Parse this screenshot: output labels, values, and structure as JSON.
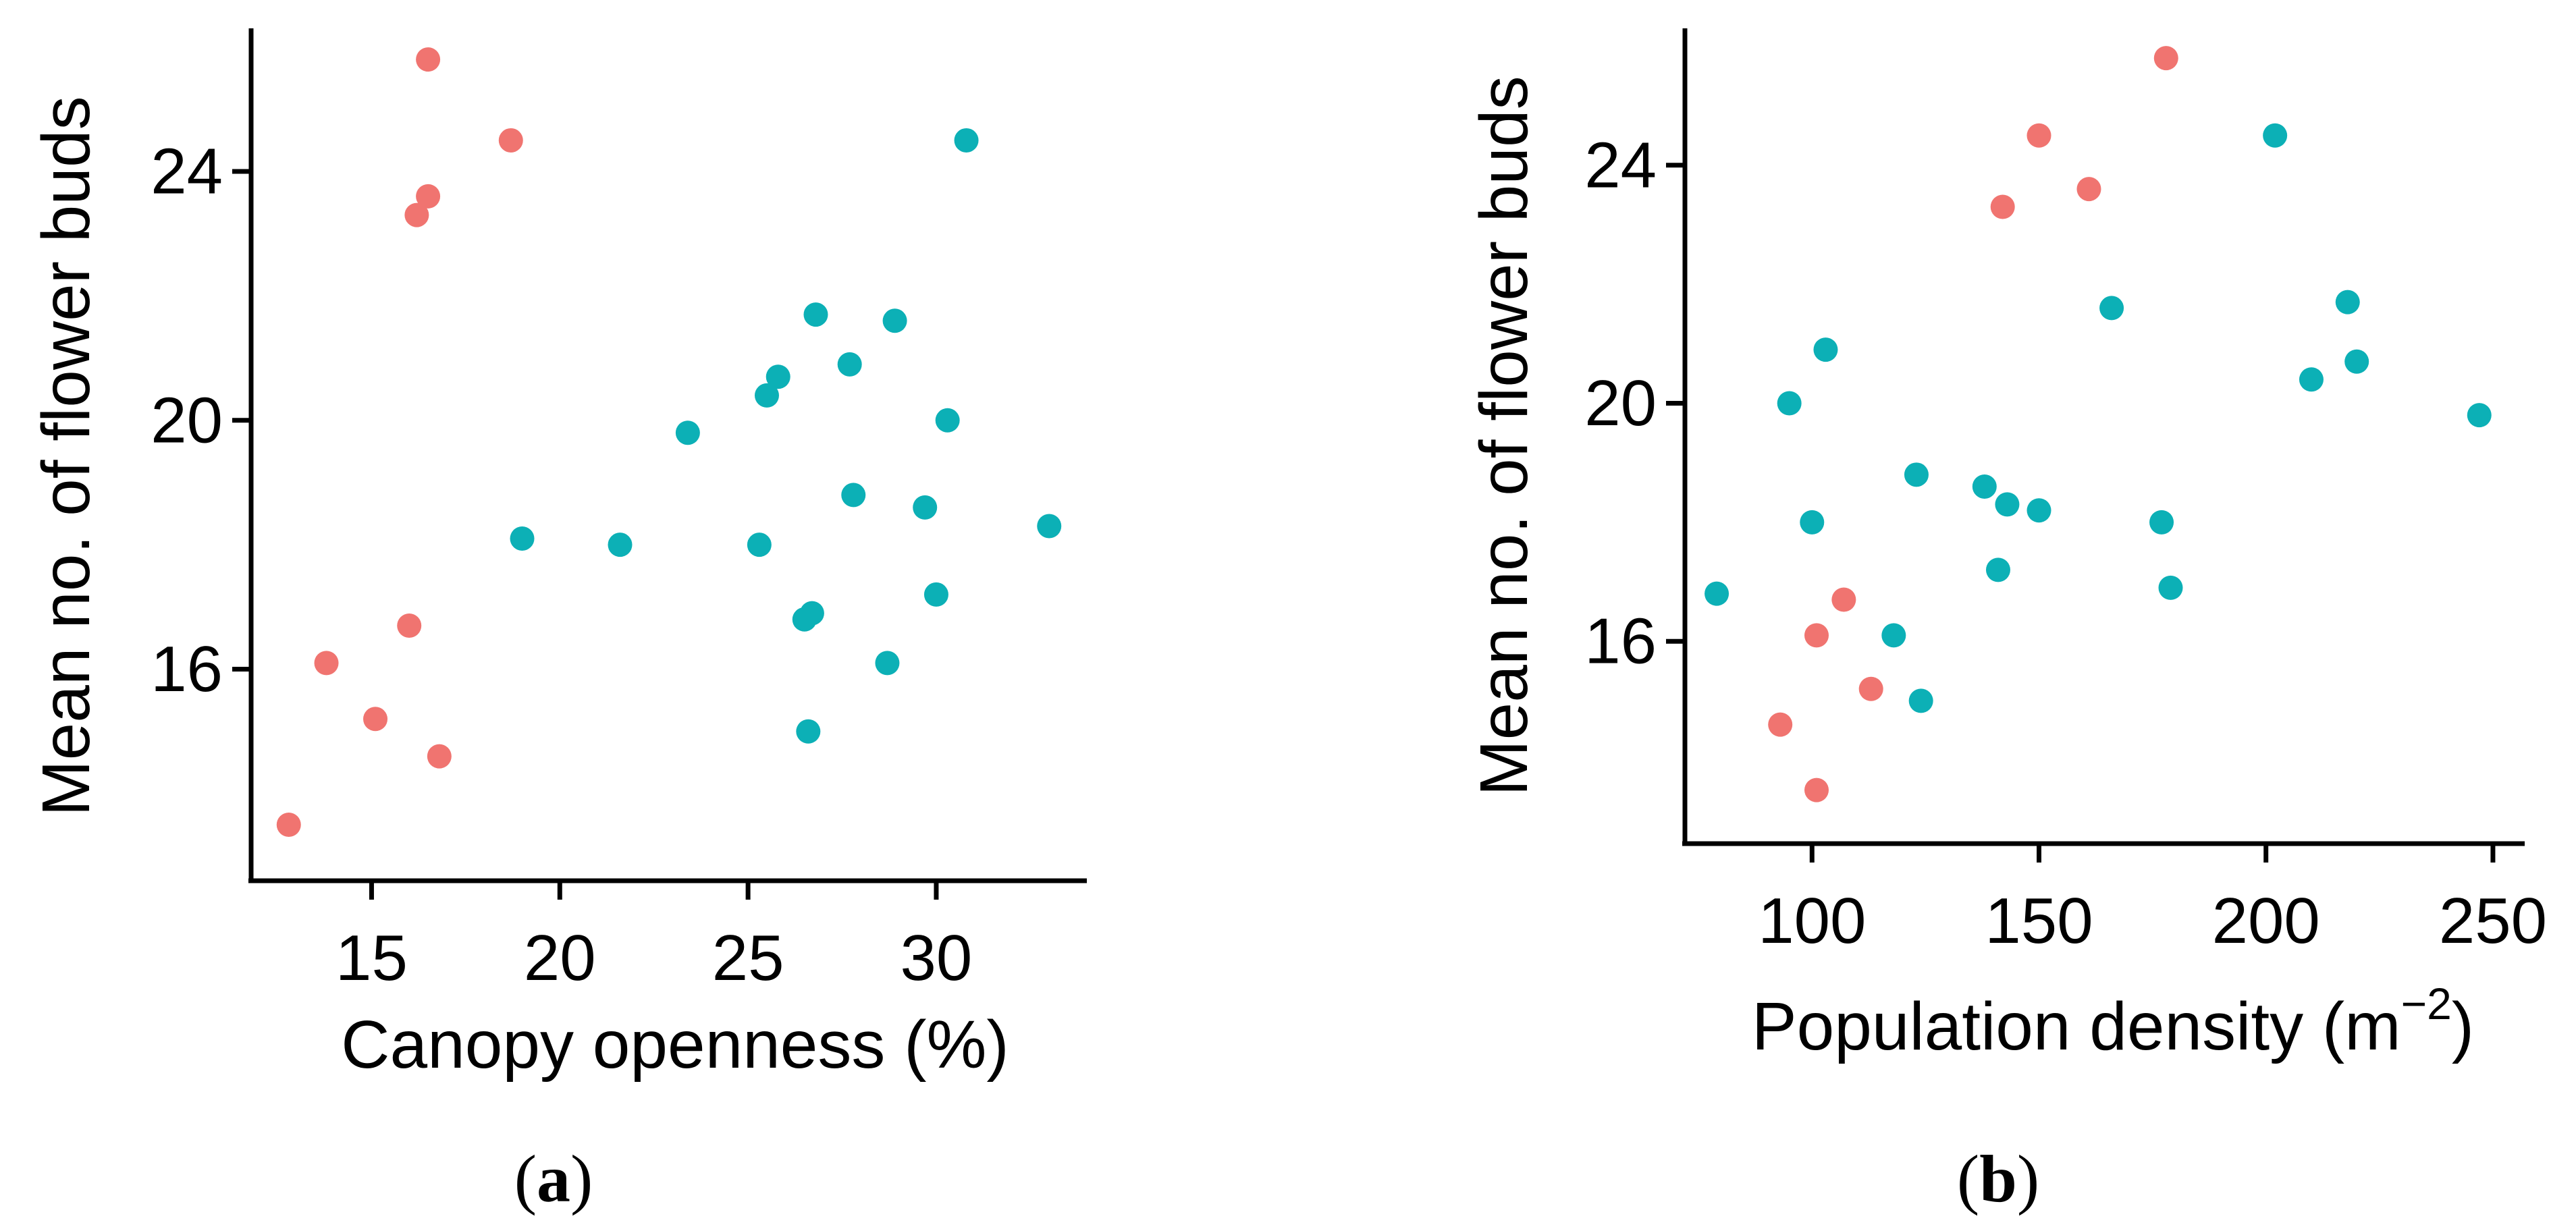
{
  "colors": {
    "group_a": "#F07470",
    "group_b": "#0CB0B6",
    "axis": "#000000"
  },
  "panels": [
    {
      "label_open": "(",
      "label_letter": "a",
      "label_close": ")"
    },
    {
      "label_open": "(",
      "label_letter": "b",
      "label_close": ")"
    }
  ],
  "chart_data": [
    {
      "type": "scatter",
      "title": "",
      "xlabel": "Canopy openness (%)",
      "ylabel": "Mean no. of flower buds",
      "xlim": [
        11.8,
        34
      ],
      "ylim": [
        12.6,
        26.3
      ],
      "xticks": [
        15,
        20,
        25,
        30
      ],
      "yticks": [
        16,
        20,
        24
      ],
      "series": [
        {
          "name": "red group",
          "color": "#F07470",
          "points": [
            [
              16.5,
              25.8
            ],
            [
              18.7,
              24.5
            ],
            [
              16.5,
              23.6
            ],
            [
              16.2,
              23.3
            ],
            [
              16.0,
              16.7
            ],
            [
              13.8,
              16.1
            ],
            [
              15.1,
              15.2
            ],
            [
              16.8,
              14.6
            ],
            [
              12.8,
              13.5
            ]
          ]
        },
        {
          "name": "teal group",
          "color": "#0CB0B6",
          "points": [
            [
              30.8,
              24.5
            ],
            [
              26.8,
              21.7
            ],
            [
              28.9,
              21.6
            ],
            [
              27.7,
              20.9
            ],
            [
              25.8,
              20.7
            ],
            [
              25.5,
              20.4
            ],
            [
              30.3,
              20.0
            ],
            [
              23.4,
              19.8
            ],
            [
              27.8,
              18.8
            ],
            [
              29.7,
              18.6
            ],
            [
              33.0,
              18.3
            ],
            [
              19.0,
              18.1
            ],
            [
              21.6,
              18.0
            ],
            [
              25.3,
              18.0
            ],
            [
              30.0,
              17.2
            ],
            [
              26.7,
              16.9
            ],
            [
              26.5,
              16.8
            ],
            [
              28.7,
              16.1
            ],
            [
              26.6,
              15.0
            ]
          ]
        }
      ]
    },
    {
      "type": "scatter",
      "title": "",
      "xlabel": "Population density (m",
      "xlabel_sup": "−2",
      "xlabel_end": ")",
      "ylabel": "Mean no. of flower buds",
      "xlim": [
        72,
        257
      ],
      "ylim": [
        12.6,
        26.3
      ],
      "xticks": [
        100,
        150,
        200,
        250
      ],
      "yticks": [
        16,
        20,
        24
      ],
      "series": [
        {
          "name": "red group",
          "color": "#F07470",
          "points": [
            [
              178,
              25.8
            ],
            [
              150,
              24.5
            ],
            [
              161,
              23.6
            ],
            [
              142,
              23.3
            ],
            [
              107,
              16.7
            ],
            [
              101,
              16.1
            ],
            [
              113,
              15.2
            ],
            [
              93,
              14.6
            ],
            [
              101,
              13.5
            ]
          ]
        },
        {
          "name": "teal group",
          "color": "#0CB0B6",
          "points": [
            [
              202,
              24.5
            ],
            [
              218,
              21.7
            ],
            [
              166,
              21.6
            ],
            [
              103,
              20.9
            ],
            [
              220,
              20.7
            ],
            [
              210,
              20.4
            ],
            [
              95,
              20.0
            ],
            [
              247,
              19.8
            ],
            [
              123,
              18.8
            ],
            [
              138,
              18.6
            ],
            [
              143,
              18.3
            ],
            [
              150,
              18.2
            ],
            [
              100,
              18.0
            ],
            [
              177,
              18.0
            ],
            [
              141,
              17.2
            ],
            [
              179,
              16.9
            ],
            [
              79,
              16.8
            ],
            [
              118,
              16.1
            ],
            [
              124,
              15.0
            ]
          ]
        }
      ]
    }
  ]
}
